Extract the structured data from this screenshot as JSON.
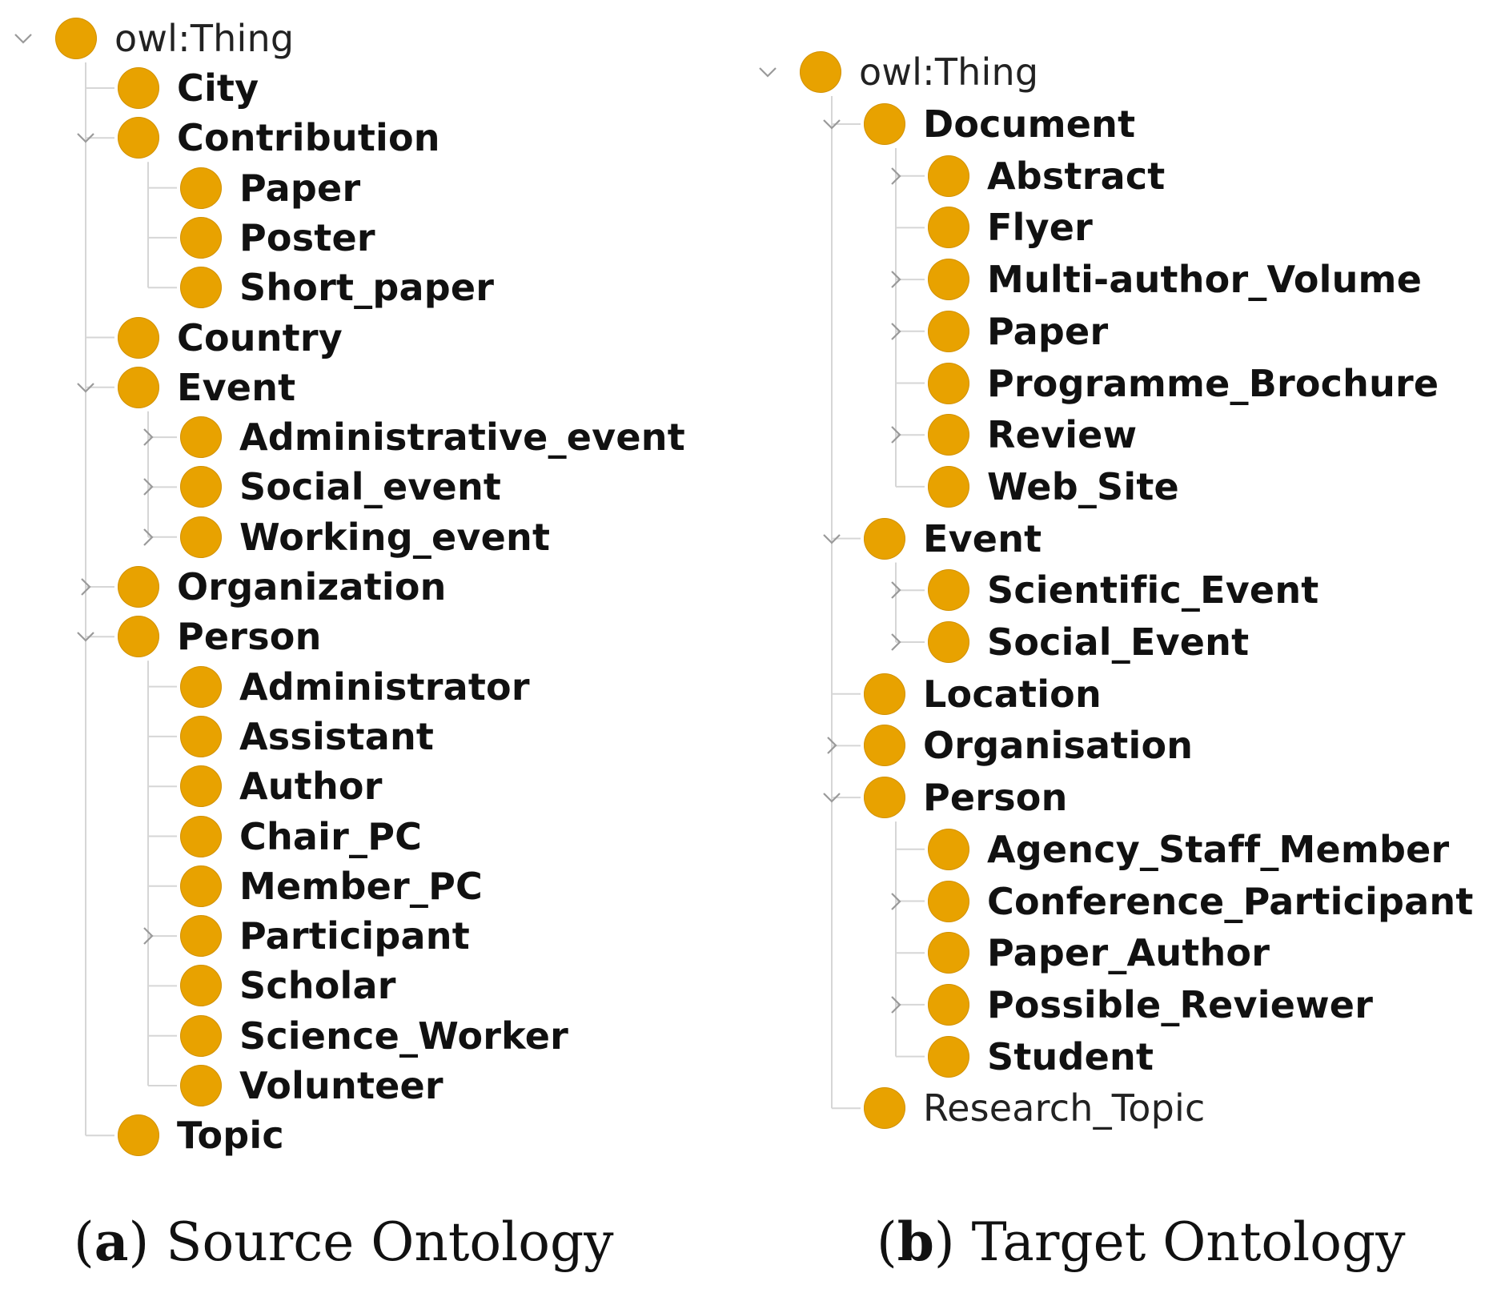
{
  "source": {
    "root": "owl:Thing",
    "items": [
      {
        "label": "City"
      },
      {
        "label": "Contribution"
      },
      {
        "label": "Paper"
      },
      {
        "label": "Poster"
      },
      {
        "label": "Short_paper"
      },
      {
        "label": "Country"
      },
      {
        "label": "Event"
      },
      {
        "label": "Administrative_event"
      },
      {
        "label": "Social_event"
      },
      {
        "label": "Working_event"
      },
      {
        "label": "Organization"
      },
      {
        "label": "Person"
      },
      {
        "label": "Administrator"
      },
      {
        "label": "Assistant"
      },
      {
        "label": "Author"
      },
      {
        "label": "Chair_PC"
      },
      {
        "label": "Member_PC"
      },
      {
        "label": "Participant"
      },
      {
        "label": "Scholar"
      },
      {
        "label": "Science_Worker"
      },
      {
        "label": "Volunteer"
      },
      {
        "label": "Topic"
      }
    ],
    "caption": {
      "open": "(",
      "letter": "a",
      "close": ")",
      "text": "Source Ontology"
    }
  },
  "target": {
    "root": "owl:Thing",
    "items": [
      {
        "label": "Document"
      },
      {
        "label": "Abstract"
      },
      {
        "label": "Flyer"
      },
      {
        "label": "Multi-author_Volume"
      },
      {
        "label": "Paper"
      },
      {
        "label": "Programme_Brochure"
      },
      {
        "label": "Review"
      },
      {
        "label": "Web_Site"
      },
      {
        "label": "Event"
      },
      {
        "label": "Scientific_Event"
      },
      {
        "label": "Social_Event"
      },
      {
        "label": "Location"
      },
      {
        "label": "Organisation"
      },
      {
        "label": "Person"
      },
      {
        "label": "Agency_Staff_Member"
      },
      {
        "label": "Conference_Participant"
      },
      {
        "label": "Paper_Author"
      },
      {
        "label": "Possible_Reviewer"
      },
      {
        "label": "Student"
      },
      {
        "label": "Research_Topic"
      }
    ],
    "caption": {
      "open": "(",
      "letter": "b",
      "close": ")",
      "text": "Target Ontology"
    }
  },
  "colors": {
    "node": "#e8a200",
    "connector": "#d6d6d6",
    "toggle": "#9a9a9a"
  },
  "icons": {
    "node": "class-node-icon",
    "expanded": "chevron-down-icon",
    "collapsed": "chevron-right-icon"
  }
}
